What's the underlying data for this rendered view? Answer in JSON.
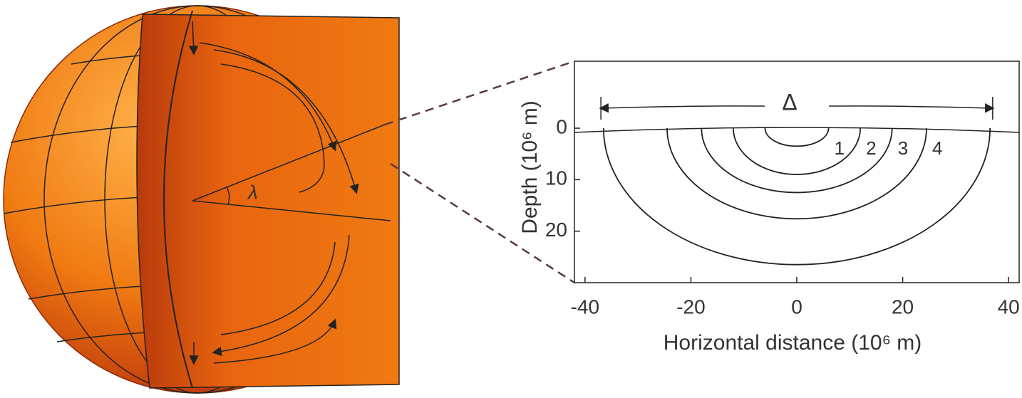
{
  "chart_data": {
    "type": "arcs",
    "xlabel": "Horizontal distance (10⁶ m)",
    "ylabel": "Depth (10⁶ m)",
    "xlim": [
      -42,
      42
    ],
    "xticks": [
      -40,
      -20,
      0,
      20,
      40
    ],
    "ylim": [
      30,
      -13
    ],
    "yticks": [
      0,
      10,
      20
    ],
    "delta": {
      "label": "Δ",
      "span": [
        -37,
        37
      ]
    },
    "series": [
      {
        "name": "1",
        "half_width": 6,
        "depth": 3.5
      },
      {
        "name": "2",
        "half_width": 12,
        "depth": 9
      },
      {
        "name": "3",
        "half_width": 18,
        "depth": 12.5
      },
      {
        "name": "4",
        "half_width": 24.5,
        "depth": 17.6
      },
      {
        "half_width": 36.5,
        "depth": 26.5
      }
    ]
  },
  "sphere": {
    "angle_label": "λ"
  }
}
